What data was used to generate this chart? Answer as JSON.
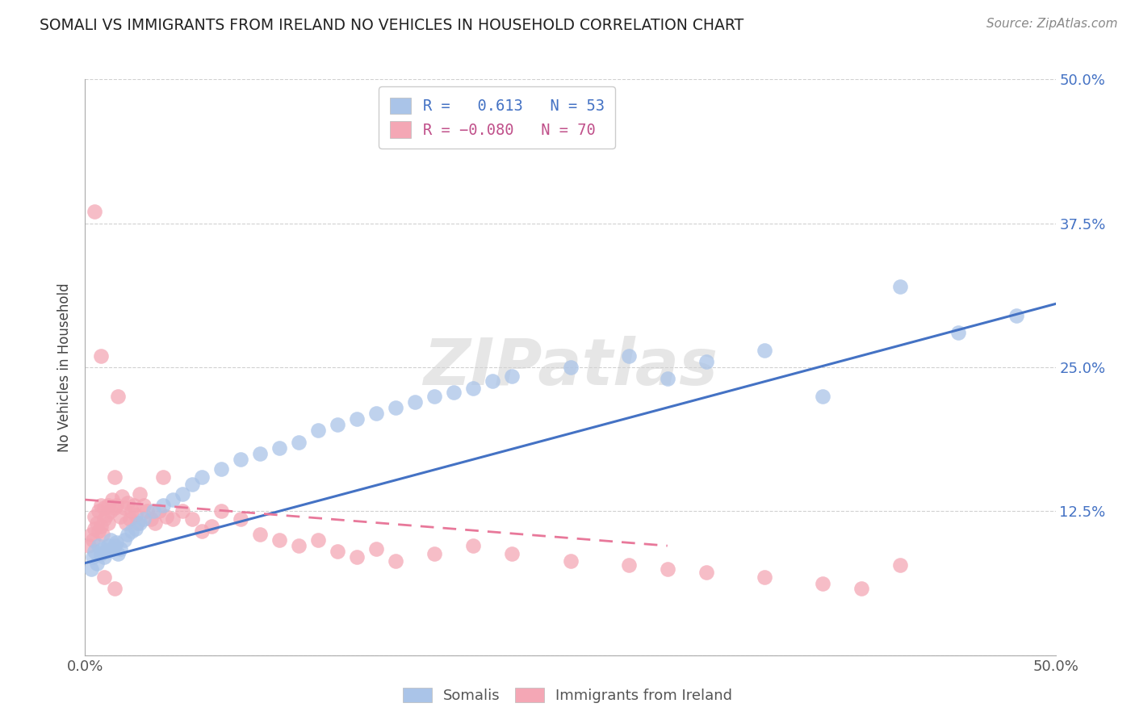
{
  "title": "SOMALI VS IMMIGRANTS FROM IRELAND NO VEHICLES IN HOUSEHOLD CORRELATION CHART",
  "source": "Source: ZipAtlas.com",
  "ylabel": "No Vehicles in Household",
  "xlim": [
    0.0,
    0.5
  ],
  "ylim": [
    0.0,
    0.5
  ],
  "y_ticks": [
    0.0,
    0.125,
    0.25,
    0.375,
    0.5
  ],
  "right_tick_labels": [
    "",
    "12.5%",
    "25.0%",
    "37.5%",
    "50.0%"
  ],
  "legend_somali_R": "0.613",
  "legend_somali_N": "53",
  "legend_ireland_R": "-0.080",
  "legend_ireland_N": "70",
  "somali_color": "#aac4e8",
  "ireland_color": "#f4a7b5",
  "trendline_somali_color": "#4472c4",
  "trendline_ireland_color": "#e8789a",
  "grid_color": "#cccccc",
  "background_color": "#ffffff",
  "somali_trend": [
    0.0,
    0.08,
    0.5,
    0.305
  ],
  "ireland_trend": [
    0.0,
    0.135,
    0.3,
    0.095
  ],
  "somali_x": [
    0.003,
    0.004,
    0.005,
    0.006,
    0.007,
    0.008,
    0.009,
    0.01,
    0.011,
    0.012,
    0.013,
    0.014,
    0.015,
    0.016,
    0.017,
    0.018,
    0.02,
    0.022,
    0.024,
    0.026,
    0.028,
    0.03,
    0.035,
    0.04,
    0.045,
    0.05,
    0.055,
    0.06,
    0.07,
    0.08,
    0.09,
    0.1,
    0.11,
    0.12,
    0.13,
    0.14,
    0.15,
    0.16,
    0.17,
    0.18,
    0.19,
    0.2,
    0.21,
    0.22,
    0.25,
    0.28,
    0.3,
    0.32,
    0.35,
    0.38,
    0.42,
    0.45,
    0.48
  ],
  "somali_y": [
    0.075,
    0.085,
    0.09,
    0.08,
    0.095,
    0.088,
    0.092,
    0.085,
    0.09,
    0.095,
    0.1,
    0.092,
    0.095,
    0.098,
    0.088,
    0.092,
    0.1,
    0.105,
    0.108,
    0.11,
    0.115,
    0.118,
    0.125,
    0.13,
    0.135,
    0.14,
    0.148,
    0.155,
    0.162,
    0.17,
    0.175,
    0.18,
    0.185,
    0.195,
    0.2,
    0.205,
    0.21,
    0.215,
    0.22,
    0.225,
    0.228,
    0.232,
    0.238,
    0.242,
    0.25,
    0.26,
    0.24,
    0.255,
    0.265,
    0.225,
    0.32,
    0.28,
    0.295
  ],
  "ireland_x": [
    0.002,
    0.003,
    0.004,
    0.005,
    0.005,
    0.006,
    0.007,
    0.007,
    0.008,
    0.008,
    0.009,
    0.01,
    0.01,
    0.011,
    0.012,
    0.012,
    0.013,
    0.014,
    0.015,
    0.015,
    0.016,
    0.017,
    0.018,
    0.019,
    0.02,
    0.021,
    0.022,
    0.023,
    0.024,
    0.025,
    0.026,
    0.027,
    0.028,
    0.03,
    0.032,
    0.034,
    0.036,
    0.038,
    0.04,
    0.042,
    0.045,
    0.05,
    0.055,
    0.06,
    0.065,
    0.07,
    0.08,
    0.09,
    0.1,
    0.11,
    0.12,
    0.13,
    0.14,
    0.15,
    0.16,
    0.18,
    0.2,
    0.22,
    0.25,
    0.28,
    0.3,
    0.32,
    0.35,
    0.38,
    0.4,
    0.42,
    0.005,
    0.008,
    0.01,
    0.015
  ],
  "ireland_y": [
    0.095,
    0.105,
    0.1,
    0.11,
    0.12,
    0.115,
    0.108,
    0.125,
    0.112,
    0.13,
    0.105,
    0.118,
    0.128,
    0.122,
    0.13,
    0.115,
    0.125,
    0.135,
    0.128,
    0.155,
    0.13,
    0.225,
    0.12,
    0.138,
    0.128,
    0.115,
    0.132,
    0.118,
    0.125,
    0.13,
    0.122,
    0.115,
    0.14,
    0.13,
    0.125,
    0.118,
    0.115,
    0.125,
    0.155,
    0.12,
    0.118,
    0.125,
    0.118,
    0.108,
    0.112,
    0.125,
    0.118,
    0.105,
    0.1,
    0.095,
    0.1,
    0.09,
    0.085,
    0.092,
    0.082,
    0.088,
    0.095,
    0.088,
    0.082,
    0.078,
    0.075,
    0.072,
    0.068,
    0.062,
    0.058,
    0.078,
    0.385,
    0.26,
    0.068,
    0.058
  ]
}
